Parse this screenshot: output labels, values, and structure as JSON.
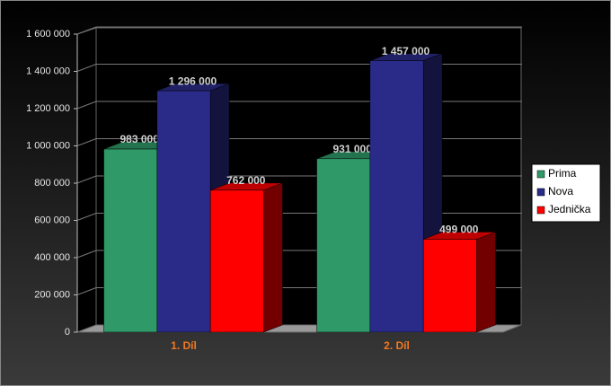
{
  "chart_data": {
    "type": "bar3d",
    "categories": [
      "1. Díl",
      "2. Díl"
    ],
    "series": [
      {
        "name": "Prima",
        "color": "#2f9a68",
        "values": [
          983000,
          931000
        ],
        "value_labels": [
          "983 000",
          "931 000"
        ]
      },
      {
        "name": "Nova",
        "color": "#2a2a88",
        "values": [
          1296000,
          1457000
        ],
        "value_labels": [
          "1 296 000",
          "1 457 000"
        ]
      },
      {
        "name": "Jednička",
        "color": "#ff0000",
        "values": [
          762000,
          499000
        ],
        "value_labels": [
          "762 000",
          "499 000"
        ]
      }
    ],
    "ylim": [
      0,
      1600000
    ],
    "yticks": [
      0,
      {
        "value": 200000,
        "label": "200 000"
      },
      {
        "value": 400000,
        "label": "400 000"
      },
      {
        "value": 600000,
        "label": "600 000"
      },
      {
        "value": 800000,
        "label": "800 000"
      },
      {
        "value": 1000000,
        "label": "1 000 000"
      },
      {
        "value": 1200000,
        "label": "1 200 000"
      },
      {
        "value": 1400000,
        "label": "1 400 000"
      },
      {
        "value": 1600000,
        "label": "1 600 000"
      }
    ],
    "grid": true,
    "legend": "right"
  }
}
